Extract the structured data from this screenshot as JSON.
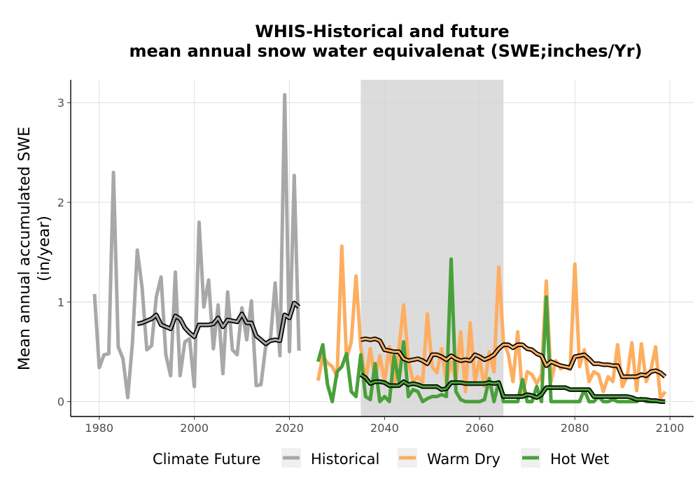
{
  "chart_data": {
    "type": "line",
    "title_line1": "WHIS-Historical and future",
    "title_line2": "mean annual snow water equivalenat (SWE;inches/Yr)",
    "xlabel": "",
    "ylabel_line1": "Mean annual accumulated SWE",
    "ylabel_line2": "(in/year)",
    "xlim": [
      1974,
      2105
    ],
    "ylim": [
      -0.15,
      3.23
    ],
    "x_ticks": [
      1980,
      2000,
      2020,
      2040,
      2060,
      2080,
      2100
    ],
    "y_ticks": [
      0,
      1,
      2,
      3
    ],
    "grid": true,
    "shaded_period": [
      2035,
      2065
    ],
    "legend_title": "Climate Future",
    "legend_position": "bottom",
    "series": [
      {
        "name": "Historical",
        "color": "#a8a8a8",
        "x": [
          1979,
          1980,
          1981,
          1982,
          1983,
          1984,
          1985,
          1986,
          1987,
          1988,
          1989,
          1990,
          1991,
          1992,
          1993,
          1994,
          1995,
          1996,
          1997,
          1998,
          1999,
          2000,
          2001,
          2002,
          2003,
          2004,
          2005,
          2006,
          2007,
          2008,
          2009,
          2010,
          2011,
          2012,
          2013,
          2014,
          2015,
          2016,
          2017,
          2018,
          2019,
          2020,
          2021,
          2022
        ],
        "y": [
          1.08,
          0.34,
          0.47,
          0.48,
          2.3,
          0.55,
          0.43,
          0.04,
          0.6,
          1.52,
          1.15,
          0.52,
          0.56,
          1.05,
          1.25,
          0.47,
          0.26,
          1.3,
          0.26,
          0.6,
          0.63,
          0.15,
          1.8,
          0.95,
          1.22,
          0.53,
          0.97,
          0.28,
          1.1,
          0.52,
          0.47,
          0.94,
          0.62,
          1.01,
          0.16,
          0.17,
          0.55,
          0.62,
          1.19,
          0.46,
          3.08,
          0.5,
          2.27,
          0.51
        ]
      },
      {
        "name": "Warm Dry",
        "color": "#fdae61",
        "x": [
          2026,
          2027,
          2028,
          2029,
          2030,
          2031,
          2032,
          2033,
          2034,
          2035,
          2036,
          2037,
          2038,
          2039,
          2040,
          2041,
          2042,
          2043,
          2044,
          2045,
          2046,
          2047,
          2048,
          2049,
          2050,
          2051,
          2052,
          2053,
          2054,
          2055,
          2056,
          2057,
          2058,
          2059,
          2060,
          2061,
          2062,
          2063,
          2064,
          2065,
          2066,
          2067,
          2068,
          2069,
          2070,
          2071,
          2072,
          2073,
          2074,
          2075,
          2076,
          2077,
          2078,
          2079,
          2080,
          2081,
          2082,
          2083,
          2084,
          2085,
          2086,
          2087,
          2088,
          2089,
          2090,
          2091,
          2092,
          2093,
          2094,
          2095,
          2096,
          2097,
          2098,
          2099
        ],
        "y": [
          0.21,
          0.45,
          0.39,
          0.35,
          0.25,
          1.56,
          0.43,
          0.6,
          1.26,
          0.55,
          0.2,
          0.53,
          0.22,
          0.46,
          0.2,
          0.55,
          0.15,
          0.52,
          0.97,
          0.41,
          0.2,
          0.25,
          0.19,
          0.88,
          0.35,
          0.29,
          0.53,
          0.19,
          0.4,
          0.21,
          0.7,
          0.1,
          0.79,
          0.2,
          0.43,
          0.15,
          0.5,
          0.3,
          1.35,
          0.6,
          0.48,
          0.2,
          0.7,
          0.05,
          0.3,
          0.27,
          0.18,
          0.27,
          1.21,
          0.2,
          0.41,
          0.33,
          0.35,
          0.32,
          1.38,
          0.35,
          0.52,
          0.2,
          0.3,
          0.27,
          0.1,
          0.25,
          0.2,
          0.57,
          0.15,
          0.25,
          0.59,
          0.11,
          0.58,
          0.2,
          0.32,
          0.55,
          0.03,
          0.1
        ]
      },
      {
        "name": "Hot Wet",
        "color": "#4aa03a",
        "x": [
          2026,
          2027,
          2028,
          2029,
          2030,
          2031,
          2032,
          2033,
          2034,
          2035,
          2036,
          2037,
          2038,
          2039,
          2040,
          2041,
          2042,
          2043,
          2044,
          2045,
          2046,
          2047,
          2048,
          2049,
          2050,
          2051,
          2052,
          2053,
          2054,
          2055,
          2056,
          2057,
          2058,
          2059,
          2060,
          2061,
          2062,
          2063,
          2064,
          2065,
          2066,
          2067,
          2068,
          2069,
          2070,
          2071,
          2072,
          2073,
          2074,
          2075,
          2076,
          2077,
          2078,
          2079,
          2080,
          2081,
          2082,
          2083,
          2084,
          2085,
          2086,
          2087,
          2088,
          2089,
          2090,
          2091,
          2092,
          2093,
          2094,
          2095,
          2096,
          2097,
          2098,
          2099
        ],
        "y": [
          0.4,
          0.57,
          0.17,
          0.0,
          0.3,
          0.35,
          0.48,
          0.1,
          0.05,
          0.47,
          0.05,
          0.02,
          0.38,
          0.0,
          0.05,
          0.0,
          0.46,
          0.2,
          0.6,
          0.05,
          0.12,
          0.1,
          0.0,
          0.03,
          0.05,
          0.05,
          0.07,
          0.05,
          1.43,
          0.1,
          0.02,
          0.0,
          0.0,
          0.0,
          0.0,
          0.02,
          0.23,
          0.0,
          0.2,
          0.0,
          0.0,
          0.0,
          0.0,
          0.22,
          0.0,
          0.0,
          0.15,
          0.0,
          1.05,
          0.0,
          0.0,
          0.0,
          0.0,
          0.0,
          0.0,
          0.0,
          0.12,
          0.0,
          0.0,
          0.05,
          0.0,
          0.0,
          0.02,
          0.0,
          0.0,
          0.0,
          0.0,
          0.0,
          0.03,
          0.0,
          0.0,
          0.0,
          0.0,
          0.0
        ]
      }
    ],
    "smoothed": [
      {
        "name": "Historical",
        "x": [
          1988,
          1989,
          1990,
          1991,
          1992,
          1993,
          1994,
          1995,
          1996,
          1997,
          1998,
          1999,
          2000,
          2001,
          2002,
          2003,
          2004,
          2005,
          2006,
          2007,
          2008,
          2009,
          2010,
          2011,
          2012,
          2013,
          2014,
          2015,
          2016,
          2017,
          2018,
          2019,
          2020,
          2021,
          2022
        ],
        "y": [
          0.78,
          0.79,
          0.81,
          0.83,
          0.87,
          0.77,
          0.75,
          0.73,
          0.86,
          0.83,
          0.74,
          0.69,
          0.65,
          0.77,
          0.77,
          0.77,
          0.78,
          0.84,
          0.75,
          0.82,
          0.81,
          0.8,
          0.88,
          0.79,
          0.79,
          0.66,
          0.62,
          0.58,
          0.61,
          0.62,
          0.61,
          0.87,
          0.84,
          0.99,
          0.95
        ]
      },
      {
        "name": "Warm Dry",
        "x": [
          2035,
          2036,
          2037,
          2038,
          2039,
          2040,
          2041,
          2042,
          2043,
          2044,
          2045,
          2046,
          2047,
          2048,
          2049,
          2050,
          2051,
          2052,
          2053,
          2054,
          2055,
          2056,
          2057,
          2058,
          2059,
          2060,
          2061,
          2062,
          2063,
          2064,
          2065,
          2066,
          2067,
          2068,
          2069,
          2070,
          2071,
          2072,
          2073,
          2074,
          2075,
          2076,
          2077,
          2078,
          2079,
          2080,
          2081,
          2082,
          2083,
          2084,
          2085,
          2086,
          2087,
          2088,
          2089,
          2090,
          2091,
          2092,
          2093,
          2094,
          2095,
          2096,
          2097,
          2098,
          2099
        ],
        "y": [
          0.62,
          0.63,
          0.62,
          0.63,
          0.61,
          0.52,
          0.51,
          0.5,
          0.5,
          0.43,
          0.41,
          0.42,
          0.43,
          0.41,
          0.38,
          0.47,
          0.47,
          0.45,
          0.42,
          0.46,
          0.43,
          0.41,
          0.42,
          0.41,
          0.47,
          0.45,
          0.42,
          0.44,
          0.47,
          0.53,
          0.57,
          0.57,
          0.54,
          0.57,
          0.57,
          0.53,
          0.52,
          0.48,
          0.46,
          0.36,
          0.4,
          0.38,
          0.36,
          0.35,
          0.34,
          0.45,
          0.46,
          0.47,
          0.43,
          0.38,
          0.38,
          0.37,
          0.37,
          0.36,
          0.36,
          0.25,
          0.25,
          0.25,
          0.25,
          0.27,
          0.26,
          0.3,
          0.31,
          0.29,
          0.25
        ]
      },
      {
        "name": "Hot Wet",
        "x": [
          2035,
          2036,
          2037,
          2038,
          2039,
          2040,
          2041,
          2042,
          2043,
          2044,
          2045,
          2046,
          2047,
          2048,
          2049,
          2050,
          2051,
          2052,
          2053,
          2054,
          2055,
          2056,
          2057,
          2058,
          2059,
          2060,
          2061,
          2062,
          2063,
          2064,
          2065,
          2066,
          2067,
          2068,
          2069,
          2070,
          2071,
          2072,
          2073,
          2074,
          2075,
          2076,
          2077,
          2078,
          2079,
          2080,
          2081,
          2082,
          2083,
          2084,
          2085,
          2086,
          2087,
          2088,
          2089,
          2090,
          2091,
          2092,
          2093,
          2094,
          2095,
          2096,
          2097,
          2098,
          2099
        ],
        "y": [
          0.27,
          0.24,
          0.18,
          0.2,
          0.2,
          0.19,
          0.16,
          0.16,
          0.16,
          0.2,
          0.17,
          0.18,
          0.17,
          0.15,
          0.15,
          0.15,
          0.15,
          0.12,
          0.13,
          0.19,
          0.19,
          0.19,
          0.18,
          0.18,
          0.18,
          0.18,
          0.18,
          0.19,
          0.18,
          0.19,
          0.05,
          0.05,
          0.05,
          0.05,
          0.05,
          0.07,
          0.06,
          0.04,
          0.07,
          0.14,
          0.14,
          0.14,
          0.14,
          0.14,
          0.12,
          0.12,
          0.12,
          0.12,
          0.12,
          0.05,
          0.05,
          0.05,
          0.05,
          0.05,
          0.05,
          0.05,
          0.05,
          0.04,
          0.02,
          0.02,
          0.02,
          0.01,
          0.01,
          0.0,
          0.0
        ]
      }
    ]
  }
}
